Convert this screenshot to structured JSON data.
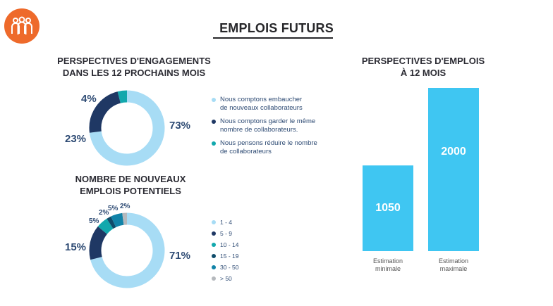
{
  "header": {
    "title": "EMPLOIS FUTURS",
    "logo_icon": "people-group-icon",
    "logo_color": "#ee6a2b"
  },
  "chart_data": [
    {
      "id": "engagement",
      "type": "pie",
      "donut": true,
      "title": "PERSPECTIVES D'ENGAGEMENTS\nDANS LES 12 PROCHAINS MOIS",
      "slices": [
        {
          "label": "Nous comptons embaucher\nde nouveaux collaborateurs",
          "value": 73,
          "value_label": "73%",
          "color": "#a7dcf5"
        },
        {
          "label": "Nous comptons garder le même\nnombre de collaborateurs.",
          "value": 23,
          "value_label": "23%",
          "color": "#1f3864"
        },
        {
          "label": "Nous pensons réduire le nombre\nde collaborateurs",
          "value": 4,
          "value_label": "4%",
          "color": "#12a8ad"
        }
      ]
    },
    {
      "id": "new-jobs",
      "type": "pie",
      "donut": true,
      "title": "NOMBRE DE NOUVEAUX\nEMPLOIS POTENTIELS",
      "slices": [
        {
          "label": "1 - 4",
          "value": 71,
          "value_label": "71%",
          "color": "#a7dcf5"
        },
        {
          "label": "5 - 9",
          "value": 15,
          "value_label": "15%",
          "color": "#1f3864"
        },
        {
          "label": "10 - 14",
          "value": 5,
          "value_label": "5%",
          "color": "#12a8ad"
        },
        {
          "label": "15 - 19",
          "value": 2,
          "value_label": "2%",
          "color": "#0f4c6b"
        },
        {
          "label": "30 - 50",
          "value": 5,
          "value_label": "5%",
          "color": "#1183a8"
        },
        {
          "label": "> 50",
          "value": 2,
          "value_label": "2%",
          "color": "#b5b9bd"
        }
      ]
    },
    {
      "id": "forecast",
      "type": "bar",
      "title": "PERSPECTIVES D'EMPLOIS\nÀ 12 MOIS",
      "categories": [
        "Estimation\nminimale",
        "Estimation\nmaximale"
      ],
      "values": [
        1050,
        2000
      ],
      "value_labels": [
        "1050",
        "2000"
      ],
      "color": "#3fc6f2",
      "ylim": [
        0,
        2000
      ]
    }
  ]
}
